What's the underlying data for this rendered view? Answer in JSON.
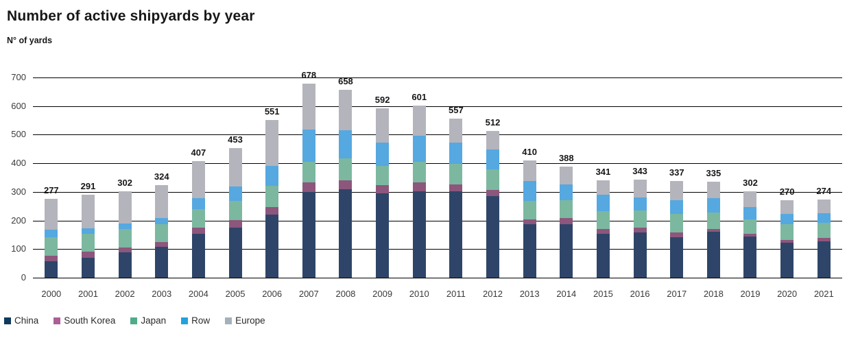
{
  "chart_data": {
    "type": "bar",
    "stacked": true,
    "title": "Number of active shipyards by year",
    "ylabel": "N° of yards",
    "xlabel": "",
    "ylim": [
      0,
      700
    ],
    "yticks": [
      700,
      600,
      500,
      400,
      300,
      200,
      100,
      0
    ],
    "grid": true,
    "legend_position": "bottom",
    "categories": [
      "2000",
      "2001",
      "2002",
      "2003",
      "2004",
      "2005",
      "2006",
      "2007",
      "2008",
      "2009",
      "2010",
      "2011",
      "2012",
      "2013",
      "2014",
      "2015",
      "2016",
      "2017",
      "2018",
      "2019",
      "2020",
      "2021"
    ],
    "series": [
      {
        "name": "China",
        "color": "#2e4569",
        "legend_color": "#10395d",
        "values": [
          57,
          70,
          88,
          108,
          153,
          176,
          221,
          300,
          310,
          295,
          301,
          302,
          285,
          186,
          188,
          153,
          158,
          142,
          161,
          143,
          122,
          128
        ]
      },
      {
        "name": "South Korea",
        "color": "#8d567c",
        "legend_color": "#ab5f94",
        "values": [
          20,
          20,
          17,
          17,
          21,
          26,
          25,
          33,
          31,
          28,
          32,
          25,
          23,
          19,
          20,
          18,
          17,
          17,
          10,
          10,
          11,
          12
        ]
      },
      {
        "name": "Japan",
        "color": "#7cb8a0",
        "legend_color": "#4fab88",
        "values": [
          65,
          64,
          66,
          61,
          66,
          66,
          76,
          72,
          76,
          67,
          72,
          71,
          71,
          64,
          62,
          62,
          59,
          64,
          58,
          50,
          55,
          52
        ]
      },
      {
        "name": "Row",
        "color": "#55a8e0",
        "legend_color": "#22a2dc",
        "values": [
          25,
          19,
          19,
          23,
          37,
          50,
          68,
          114,
          98,
          83,
          91,
          75,
          70,
          70,
          56,
          58,
          47,
          48,
          48,
          43,
          35,
          34
        ]
      },
      {
        "name": "Europe",
        "color": "#b4b4bc",
        "legend_color": "#a4b1ba",
        "values": [
          110,
          118,
          112,
          115,
          130,
          135,
          161,
          159,
          143,
          119,
          105,
          84,
          63,
          71,
          62,
          50,
          62,
          66,
          58,
          56,
          47,
          48
        ]
      }
    ],
    "totals": [
      277,
      291,
      302,
      324,
      407,
      453,
      551,
      678,
      658,
      592,
      601,
      557,
      512,
      410,
      388,
      341,
      343,
      337,
      335,
      302,
      270,
      274
    ]
  }
}
